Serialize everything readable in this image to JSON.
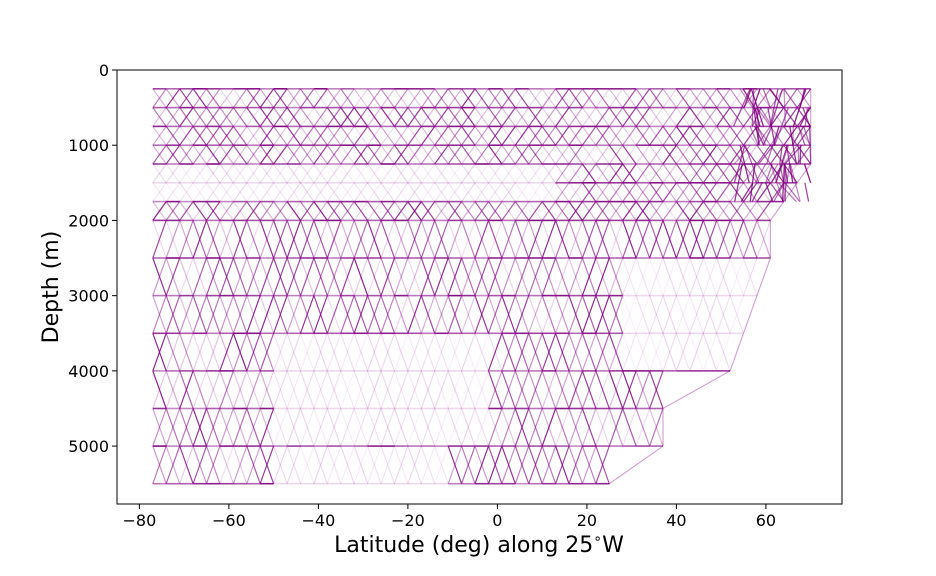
{
  "chart_data": {
    "type": "line",
    "xlabel": "Latitude (deg) along 25$^\\circ$W",
    "xlabel_main": "Latitude (deg) along 25",
    "xlabel_degree": "∘",
    "xlabel_suffix": "W",
    "ylabel": "Depth (m)",
    "xlim": [
      -85,
      77
    ],
    "ylim": [
      5770,
      0
    ],
    "y_inverted": true,
    "x_ticks": [
      -80,
      -60,
      -40,
      -20,
      0,
      20,
      40,
      60
    ],
    "x_tick_labels": [
      "−80",
      "−60",
      "−40",
      "−20",
      "0",
      "20",
      "40",
      "60"
    ],
    "y_ticks": [
      0,
      1000,
      2000,
      3000,
      4000,
      5000
    ],
    "y_tick_labels": [
      "0",
      "1000",
      "2000",
      "3000",
      "4000",
      "5000"
    ],
    "grid": false,
    "line_color": "#800080",
    "depth_levels": [
      250,
      500,
      750,
      1000,
      1250,
      1500,
      1750,
      2000,
      2500,
      3000,
      3500,
      4000,
      4500,
      5000,
      5500
    ],
    "lat_step": 3,
    "lat_range_by_depth": [
      [
        -77,
        70
      ],
      [
        -77,
        70
      ],
      [
        -77,
        70
      ],
      [
        -77,
        70
      ],
      [
        -77,
        70
      ],
      [
        -77,
        67
      ],
      [
        -77,
        64
      ],
      [
        -77,
        61
      ],
      [
        -77,
        61
      ],
      [
        -77,
        58
      ],
      [
        -77,
        55
      ],
      [
        -77,
        52
      ],
      [
        -77,
        37
      ],
      [
        -77,
        37
      ],
      [
        -77,
        25
      ]
    ],
    "sparse_regions": [
      {
        "depths": [
          1500
        ],
        "lat_range": [
          -77,
          10
        ]
      },
      {
        "depths": [
          3000,
          3500
        ],
        "lat_range": [
          28,
          55
        ]
      },
      {
        "depths": [
          4000,
          4500
        ],
        "lat_range": [
          -50,
          -5
        ]
      },
      {
        "depths": [
          5500
        ],
        "lat_range": [
          -50,
          -12
        ]
      }
    ]
  }
}
